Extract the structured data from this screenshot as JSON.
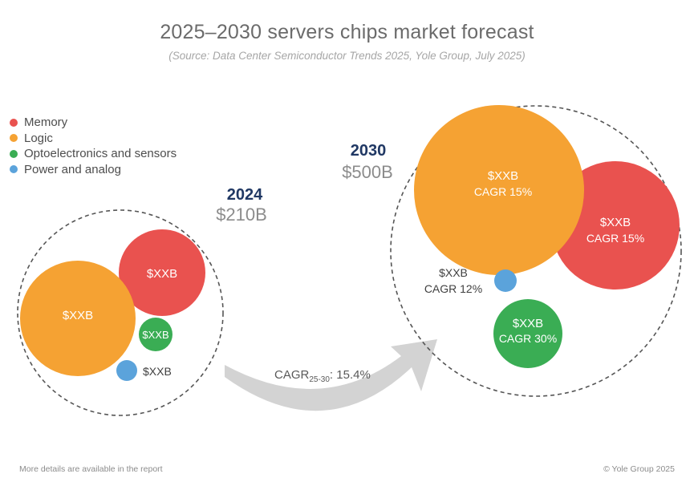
{
  "title": "2025–2030 servers chips market forecast",
  "subtitle": "(Source: Data Center Semiconductor Trends 2025, Yole Group, July 2025)",
  "legend": [
    {
      "label": "Memory",
      "color": "#e9524f"
    },
    {
      "label": "Logic",
      "color": "#f5a233"
    },
    {
      "label": "Optoelectronics and sensors",
      "color": "#3aad54"
    },
    {
      "label": "Power and analog",
      "color": "#5ba3db"
    }
  ],
  "footer": {
    "left": "More details are available in the report",
    "right": "© Yole Group 2025"
  },
  "cagr": {
    "prefix": "CAGR",
    "sub": "25-30",
    "value": ": 15.4%"
  },
  "chart_data": {
    "type": "bubble",
    "groups": [
      {
        "year": "2024",
        "total": "$210B",
        "bubbles": [
          {
            "segment": "Memory",
            "label": "$XXB",
            "cagr": ""
          },
          {
            "segment": "Logic",
            "label": "$XXB",
            "cagr": ""
          },
          {
            "segment": "Optoelectronics and sensors",
            "label": "$XXB",
            "cagr": ""
          },
          {
            "segment": "Power and analog",
            "label": "$XXB",
            "cagr": ""
          }
        ]
      },
      {
        "year": "2030",
        "total": "$500B",
        "bubbles": [
          {
            "segment": "Logic",
            "label": "$XXB",
            "cagr": "CAGR 15%"
          },
          {
            "segment": "Memory",
            "label": "$XXB",
            "cagr": "CAGR 15%"
          },
          {
            "segment": "Power and analog",
            "label": "$XXB",
            "cagr": "CAGR 12%"
          },
          {
            "segment": "Optoelectronics and sensors",
            "label": "$XXB",
            "cagr": "CAGR 30%"
          }
        ]
      }
    ]
  }
}
